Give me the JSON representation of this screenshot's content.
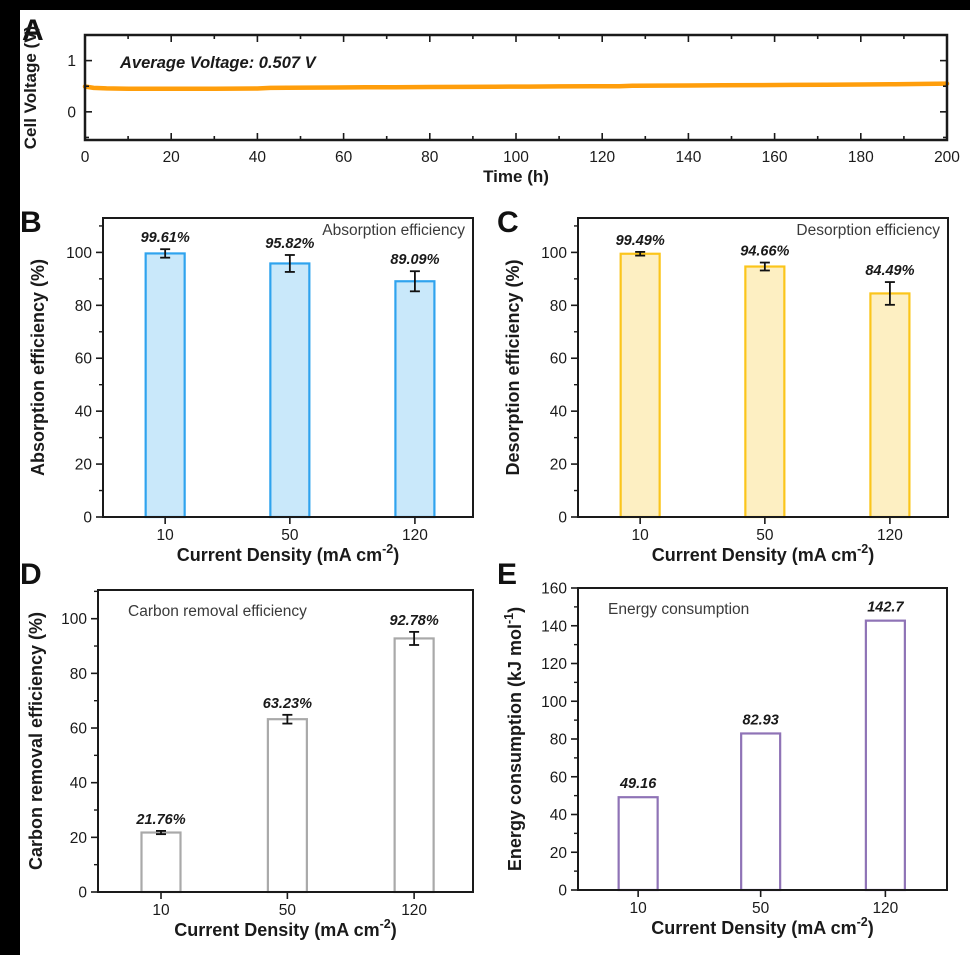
{
  "figure": {
    "panel_labels": {
      "a": "A",
      "b": "B",
      "c": "C",
      "d": "D",
      "e": "E"
    },
    "colors": {
      "background": "#000000",
      "canvas": "#ffffff",
      "frame": "#1a1a1a",
      "voltage_line": "#FF9E0B",
      "absorption_fill": "#C9E8FA",
      "absorption_stroke": "#2FA3EE",
      "desorption_fill": "#FDEFC2",
      "desorption_stroke": "#FBC51B",
      "carbon_fill": "#FFFFFF",
      "carbon_stroke": "#A9A9A9",
      "energy_fill": "#FFFFFF",
      "energy_stroke": "#8F73B6"
    }
  },
  "chart_data": [
    {
      "id": "A",
      "type": "line",
      "annotation": "Average Voltage: 0.507 V",
      "xlabel": "Time (h)",
      "ylabel": "Cell Voltage (V)",
      "xlim": [
        0,
        200
      ],
      "xtick_step": 20,
      "xminor_step": 10,
      "ylim": [
        -0.55,
        1.5
      ],
      "yticks_major": [
        0,
        1
      ],
      "yticks_minor": [
        -0.5,
        0.5
      ],
      "line_color": "#FF9E0B",
      "x": [
        0,
        2,
        5,
        10,
        15,
        20,
        25,
        30,
        35,
        40,
        43,
        47,
        52,
        58,
        65,
        72,
        80,
        88,
        95,
        103,
        110,
        118,
        124,
        127,
        133,
        140,
        148,
        156,
        164,
        172,
        180,
        188,
        195,
        200
      ],
      "y": [
        0.495,
        0.468,
        0.458,
        0.452,
        0.45,
        0.449,
        0.45,
        0.451,
        0.453,
        0.455,
        0.467,
        0.471,
        0.473,
        0.475,
        0.478,
        0.481,
        0.484,
        0.487,
        0.49,
        0.493,
        0.496,
        0.499,
        0.501,
        0.509,
        0.512,
        0.515,
        0.518,
        0.521,
        0.525,
        0.529,
        0.534,
        0.539,
        0.545,
        0.551
      ]
    },
    {
      "id": "B",
      "type": "bar",
      "legend": "Absorption efficiency",
      "legend_pos": "right",
      "ylabel": "Absorption efficiency (%)",
      "xlabel": {
        "pre": "Current Density (mA cm",
        "sup": "-2",
        "post": ")"
      },
      "categories": [
        "10",
        "50",
        "120"
      ],
      "values": [
        99.61,
        95.82,
        89.09
      ],
      "errors": [
        1.6,
        3.2,
        3.8
      ],
      "labels": [
        "99.61%",
        "95.82%",
        "89.09%"
      ],
      "ylim": [
        0,
        113
      ],
      "ytick_step": 20,
      "ytick_max": 100,
      "bar_fill": "#C9E8FA",
      "bar_stroke": "#2FA3EE"
    },
    {
      "id": "C",
      "type": "bar",
      "legend": "Desorption efficiency",
      "legend_pos": "right",
      "ylabel": "Desorption efficiency (%)",
      "xlabel": {
        "pre": "Current Density (mA cm",
        "sup": "-2",
        "post": ")"
      },
      "categories": [
        "10",
        "50",
        "120"
      ],
      "values": [
        99.49,
        94.66,
        84.49
      ],
      "errors": [
        0.7,
        1.5,
        4.3
      ],
      "labels": [
        "99.49%",
        "94.66%",
        "84.49%"
      ],
      "ylim": [
        0,
        113
      ],
      "ytick_step": 20,
      "ytick_max": 100,
      "bar_fill": "#FDEFC2",
      "bar_stroke": "#FBC51B"
    },
    {
      "id": "D",
      "type": "bar",
      "legend": "Carbon removal efficiency",
      "legend_pos": "left",
      "ylabel": "Carbon removal efficiency (%)",
      "xlabel": {
        "pre": "Current Density (mA cm",
        "sup": "-2",
        "post": ")"
      },
      "categories": [
        "10",
        "50",
        "120"
      ],
      "values": [
        21.76,
        63.23,
        92.78
      ],
      "errors": [
        0.6,
        1.6,
        2.4
      ],
      "labels": [
        "21.76%",
        "63.23%",
        "92.78%"
      ],
      "ylim": [
        0,
        110.5
      ],
      "ytick_step": 20,
      "ytick_max": 100,
      "bar_fill": "#FFFFFF",
      "bar_stroke": "#A9A9A9"
    },
    {
      "id": "E",
      "type": "bar",
      "legend": "Energy consumption",
      "legend_pos": "left",
      "ylabel": {
        "pre": "Energy consumption (kJ mol",
        "sup": "-1",
        "post": ")"
      },
      "xlabel": {
        "pre": "Current Density (mA cm",
        "sup": "-2",
        "post": ")"
      },
      "categories": [
        "10",
        "50",
        "120"
      ],
      "values": [
        49.16,
        82.93,
        142.7
      ],
      "errors": [
        0,
        0,
        0
      ],
      "labels": [
        "49.16",
        "82.93",
        "142.7"
      ],
      "ylim": [
        0,
        160
      ],
      "ytick_step": 20,
      "ytick_max": 160,
      "bar_fill": "#FFFFFF",
      "bar_stroke": "#8F73B6"
    }
  ]
}
